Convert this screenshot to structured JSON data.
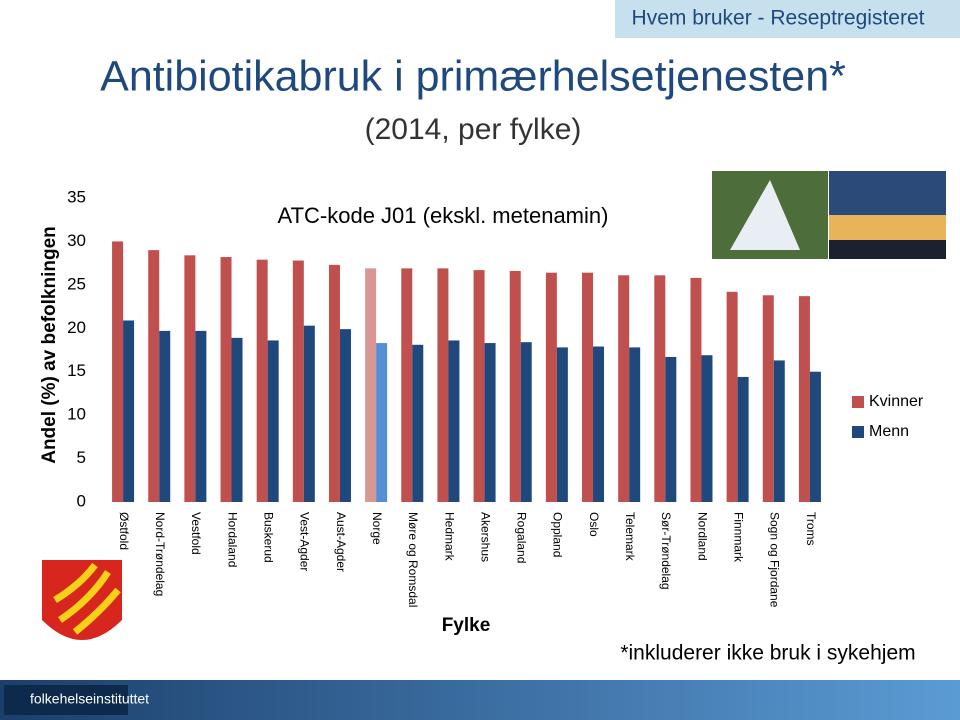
{
  "header": {
    "banner": "Hvem bruker - Reseptregisteret"
  },
  "chart_data": {
    "type": "bar",
    "title": "Antibiotikabruk i primærhelsetjenesten*",
    "subtitle": "(2014, per fylke)",
    "annotation": "ATC-kode J01 (ekskl. metenamin)",
    "x_label": "Fylke",
    "y_label": "Andel (%) av befolkningen",
    "categories": [
      "Østfold",
      "Nord-Trøndelag",
      "Vestfold",
      "Hordaland",
      "Buskerud",
      "Vest-Agder",
      "Aust-Agder",
      "Norge",
      "Møre og Romsdal",
      "Hedmark",
      "Akershus",
      "Rogaland",
      "Oppland",
      "Oslo",
      "Telemark",
      "Sør-Trøndelag",
      "Nordland",
      "Finnmark",
      "Sogn og Fjordane",
      "Troms"
    ],
    "series": [
      {
        "name": "Kvinner",
        "color": "#c0504d",
        "highlight_color": "#d99694",
        "values": [
          30.0,
          29.0,
          28.4,
          28.2,
          27.9,
          27.8,
          27.3,
          26.9,
          26.9,
          26.9,
          26.7,
          26.6,
          26.4,
          26.4,
          26.1,
          26.1,
          25.8,
          24.2,
          23.8,
          23.7
        ]
      },
      {
        "name": "Menn",
        "color": "#1f497d",
        "highlight_color": "#558ed5",
        "values": [
          20.9,
          19.7,
          19.7,
          18.9,
          18.6,
          20.3,
          19.9,
          18.3,
          18.1,
          18.6,
          18.3,
          18.4,
          17.8,
          17.9,
          17.8,
          16.7,
          16.9,
          14.4,
          16.3,
          15.0
        ]
      }
    ],
    "highlight": "Norge",
    "ylim": [
      0,
      35
    ],
    "yticks": [
      0,
      5,
      10,
      15,
      20,
      25,
      30,
      35
    ],
    "grid": false,
    "legend": "right"
  },
  "footnote": "*inkluderer ikke bruk i sykehjem",
  "footer": {
    "logo_text": "folkehelseinstituttet"
  }
}
